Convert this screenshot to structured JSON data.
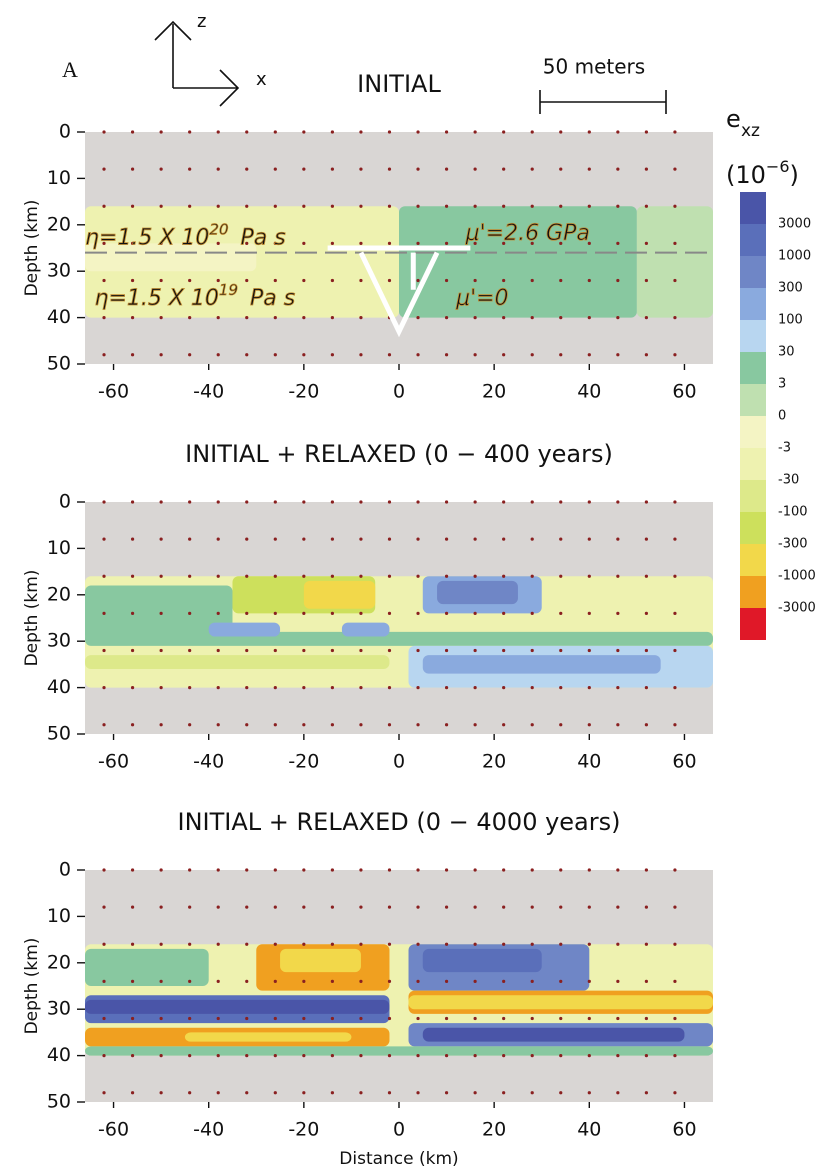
{
  "figure_label": "A",
  "axis_glyphs": {
    "z": "z",
    "x": "x"
  },
  "scale_bar": "50 meters",
  "colorbar": {
    "symbol": "e",
    "symbol_sub": "xz",
    "unit_open": "(10",
    "unit_exp": "−6",
    "unit_close": ")",
    "colors": [
      "#4a55a8",
      "#5a6fba",
      "#6f86c6",
      "#8aaade",
      "#b8d6f0",
      "#88c8a0",
      "#bfe0b0",
      "#f4f4c4",
      "#eef2b0",
      "#dde98a",
      "#cde05c",
      "#f2d84a",
      "#f0a020",
      "#e01828"
    ],
    "labels": [
      3000,
      1000,
      300,
      100,
      30,
      3,
      0,
      -3,
      -30,
      -100,
      -300,
      -1000,
      -3000
    ]
  },
  "chart_data": [
    {
      "type": "contour",
      "title": "INITIAL",
      "ylabel": "Depth (km)",
      "xlim": [
        -66,
        66
      ],
      "ylim": [
        50,
        0
      ],
      "xticks": [
        -60,
        -40,
        -20,
        0,
        20,
        40,
        60
      ],
      "yticks": [
        0,
        10,
        20,
        30,
        40,
        50
      ],
      "annotations": [
        {
          "text": "η=1.5 X 10",
          "sup": "20",
          "tail": "Pa s"
        },
        {
          "text": "η=1.5 X 10",
          "sup": "19",
          "tail": "Pa s"
        },
        {
          "text": "μ'=2.6 GPa"
        },
        {
          "text": "μ'=0"
        }
      ]
    },
    {
      "type": "contour",
      "title": "INITIAL + RELAXED (0 − 400 years)",
      "ylabel": "Depth (km)",
      "xlim": [
        -66,
        66
      ],
      "ylim": [
        50,
        0
      ],
      "xticks": [
        -60,
        -40,
        -20,
        0,
        20,
        40,
        60
      ],
      "yticks": [
        0,
        10,
        20,
        30,
        40,
        50
      ]
    },
    {
      "type": "contour",
      "title": "INITIAL + RELAXED (0 − 4000 years)",
      "ylabel": "Depth (km)",
      "xlabel": "Distance (km)",
      "xlim": [
        -66,
        66
      ],
      "ylim": [
        50,
        0
      ],
      "xticks": [
        -60,
        -40,
        -20,
        0,
        20,
        40,
        60
      ],
      "yticks": [
        0,
        10,
        20,
        30,
        40,
        50
      ]
    }
  ]
}
